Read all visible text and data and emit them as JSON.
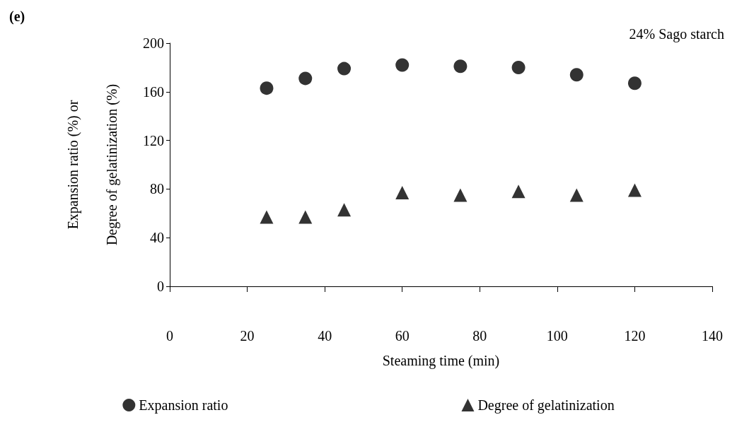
{
  "chart_data": {
    "type": "scatter",
    "title": "(e)",
    "xlabel": "Steaming time (min)",
    "ylabel": "Expansion ratio (%) or\nDegree of gelatinization (%)",
    "x": [
      25,
      35,
      45,
      60,
      75,
      90,
      105,
      120
    ],
    "series": [
      {
        "name": "Expansion ratio",
        "color": "#000000",
        "marker": "circle",
        "values": [
          163,
          171,
          179,
          182,
          181,
          180,
          174,
          167
        ]
      },
      {
        "name": "Degree of gelatinization",
        "color": "#000000",
        "marker": "triangle",
        "values": [
          57,
          57,
          63,
          77,
          75,
          78,
          75,
          79
        ]
      }
    ],
    "xlim": [
      0,
      140
    ],
    "xticks": [
      0,
      20,
      40,
      60,
      80,
      100,
      120,
      140
    ],
    "ylim": [
      0,
      200
    ],
    "yticks": [
      0,
      40,
      80,
      120,
      160,
      200
    ],
    "grid": false,
    "legend": "bottom",
    "annotations": [
      "24% Sago starch"
    ]
  }
}
